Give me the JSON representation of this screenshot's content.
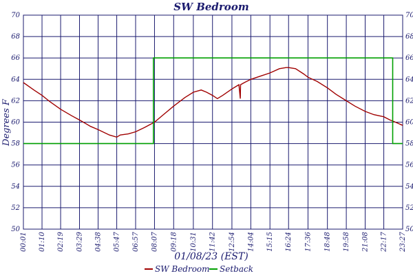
{
  "chart_data": {
    "type": "line",
    "title": "SW Bedroom",
    "xlabel": "01/08/23 (EST)",
    "ylabel": "Degrees F",
    "ylim": [
      50,
      70
    ],
    "y_ticks": [
      50,
      52,
      54,
      56,
      58,
      60,
      62,
      64,
      66,
      68,
      70
    ],
    "x_range_minutes": [
      1,
      1407
    ],
    "x_ticks": [
      {
        "label": "00:01",
        "minute": 1
      },
      {
        "label": "01:10",
        "minute": 70
      },
      {
        "label": "02:19",
        "minute": 139
      },
      {
        "label": "03:29",
        "minute": 209
      },
      {
        "label": "04:38",
        "minute": 278
      },
      {
        "label": "05:47",
        "minute": 347
      },
      {
        "label": "06:57",
        "minute": 417
      },
      {
        "label": "08:07",
        "minute": 487
      },
      {
        "label": "09:18",
        "minute": 558
      },
      {
        "label": "10:31",
        "minute": 631
      },
      {
        "label": "11:42",
        "minute": 702
      },
      {
        "label": "12:54",
        "minute": 774
      },
      {
        "label": "14:04",
        "minute": 844
      },
      {
        "label": "15:15",
        "minute": 915
      },
      {
        "label": "16:24",
        "minute": 984
      },
      {
        "label": "17:36",
        "minute": 1056
      },
      {
        "label": "18:48",
        "minute": 1128
      },
      {
        "label": "19:58",
        "minute": 1198
      },
      {
        "label": "21:08",
        "minute": 1268
      },
      {
        "label": "22:17",
        "minute": 1337
      },
      {
        "label": "23:27",
        "minute": 1407
      }
    ],
    "grid": true,
    "legend_position": "bottom",
    "series": [
      {
        "name": "SW Bedroom",
        "color": "#a00000",
        "points": [
          [
            1,
            63.7
          ],
          [
            40,
            63.0
          ],
          [
            70,
            62.5
          ],
          [
            100,
            61.9
          ],
          [
            139,
            61.2
          ],
          [
            180,
            60.6
          ],
          [
            209,
            60.2
          ],
          [
            250,
            59.6
          ],
          [
            278,
            59.3
          ],
          [
            320,
            58.8
          ],
          [
            347,
            58.6
          ],
          [
            360,
            58.8
          ],
          [
            390,
            58.9
          ],
          [
            417,
            59.1
          ],
          [
            450,
            59.5
          ],
          [
            487,
            60.0
          ],
          [
            520,
            60.7
          ],
          [
            558,
            61.5
          ],
          [
            600,
            62.3
          ],
          [
            631,
            62.8
          ],
          [
            660,
            63.0
          ],
          [
            680,
            62.8
          ],
          [
            702,
            62.5
          ],
          [
            720,
            62.2
          ],
          [
            740,
            62.5
          ],
          [
            774,
            63.1
          ],
          [
            800,
            63.5
          ],
          [
            805,
            62.2
          ],
          [
            806,
            63.5
          ],
          [
            820,
            63.7
          ],
          [
            844,
            64.0
          ],
          [
            880,
            64.3
          ],
          [
            915,
            64.6
          ],
          [
            950,
            65.0
          ],
          [
            975,
            65.1
          ],
          [
            984,
            65.1
          ],
          [
            1010,
            65.0
          ],
          [
            1040,
            64.5
          ],
          [
            1056,
            64.2
          ],
          [
            1090,
            63.8
          ],
          [
            1128,
            63.2
          ],
          [
            1160,
            62.6
          ],
          [
            1198,
            62.0
          ],
          [
            1230,
            61.5
          ],
          [
            1268,
            61.0
          ],
          [
            1300,
            60.7
          ],
          [
            1337,
            60.5
          ],
          [
            1360,
            60.2
          ],
          [
            1380,
            60.0
          ],
          [
            1407,
            59.7
          ]
        ]
      },
      {
        "name": "Setback",
        "color": "#00a000",
        "points": [
          [
            1,
            58.0
          ],
          [
            483,
            58.0
          ],
          [
            483,
            66.0
          ],
          [
            1370,
            66.0
          ],
          [
            1370,
            58.0
          ],
          [
            1407,
            58.0
          ]
        ]
      }
    ]
  }
}
